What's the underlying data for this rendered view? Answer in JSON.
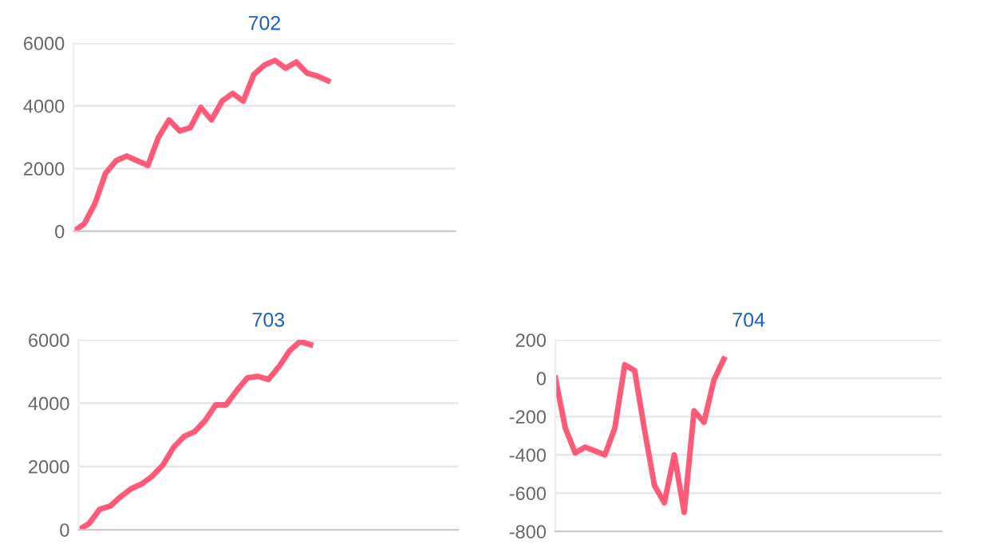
{
  "chart_data": [
    {
      "type": "line",
      "title": "702",
      "categories": [
        null,
        null,
        null,
        null,
        null,
        null,
        null,
        null,
        null,
        null,
        null,
        null,
        null,
        null,
        null,
        null,
        null,
        null,
        null,
        null,
        null,
        null,
        null,
        null,
        null,
        null,
        null,
        null,
        null,
        null,
        null,
        null,
        null,
        null,
        null,
        null,
        null
      ],
      "series": [
        {
          "color": "#ff5a78",
          "values": [
            0,
            240,
            880,
            1850,
            2250,
            2400,
            2250,
            2100,
            3000,
            3550,
            3200,
            3300,
            3950,
            3550,
            4150,
            4400,
            4150,
            5000,
            5300,
            5450,
            5200,
            5400,
            5050,
            4950,
            4800,
            null,
            null,
            null,
            null,
            null,
            null,
            null,
            null,
            null,
            null,
            null,
            null
          ]
        }
      ],
      "ylim": [
        0,
        6000
      ],
      "yticks": [
        0,
        2000,
        4000,
        6000
      ],
      "grid": "y",
      "marker": "none",
      "line_style": "solid"
    },
    {
      "type": "line",
      "title": "703",
      "categories": [
        null,
        null,
        null,
        null,
        null,
        null,
        null,
        null,
        null,
        null,
        null,
        null,
        null,
        null,
        null,
        null,
        null,
        null,
        null,
        null,
        null,
        null,
        null,
        null,
        null,
        null,
        null,
        null,
        null,
        null,
        null,
        null,
        null,
        null,
        null,
        null,
        null
      ],
      "series": [
        {
          "color": "#ff5a78",
          "values": [
            0,
            200,
            650,
            750,
            1050,
            1300,
            1450,
            1700,
            2050,
            2600,
            2950,
            3100,
            3450,
            3950,
            3950,
            4400,
            4800,
            4850,
            4750,
            5150,
            5650,
            5950,
            5850,
            null,
            null,
            null,
            null,
            null,
            null,
            null,
            null,
            null,
            null,
            null,
            null,
            null,
            null
          ]
        }
      ],
      "ylim": [
        0,
        6000
      ],
      "yticks": [
        0,
        2000,
        4000,
        6000
      ],
      "grid": "y",
      "marker": "none",
      "line_style": "solid"
    },
    {
      "type": "line",
      "title": "704",
      "categories": [
        null,
        null,
        null,
        null,
        null,
        null,
        null,
        null,
        null,
        null,
        null,
        null,
        null,
        null,
        null,
        null,
        null,
        null,
        null,
        null,
        null,
        null,
        null,
        null,
        null,
        null,
        null,
        null,
        null,
        null,
        null,
        null,
        null,
        null,
        null,
        null,
        null,
        null,
        null,
        null
      ],
      "series": [
        {
          "color": "#ff5a78",
          "values": [
            0,
            -260,
            -390,
            -360,
            -380,
            -400,
            -260,
            70,
            40,
            -270,
            -560,
            -650,
            -400,
            -700,
            -170,
            -230,
            -10,
            100,
            null,
            null,
            null,
            null,
            null,
            null,
            null,
            null,
            null,
            null,
            null,
            null,
            null,
            null,
            null,
            null,
            null,
            null,
            null,
            null,
            null,
            null
          ]
        }
      ],
      "ylim": [
        -800,
        200
      ],
      "yticks": [
        -800,
        -600,
        -400,
        -200,
        0,
        200
      ],
      "grid": "y",
      "marker": "none",
      "line_style": "solid"
    }
  ]
}
